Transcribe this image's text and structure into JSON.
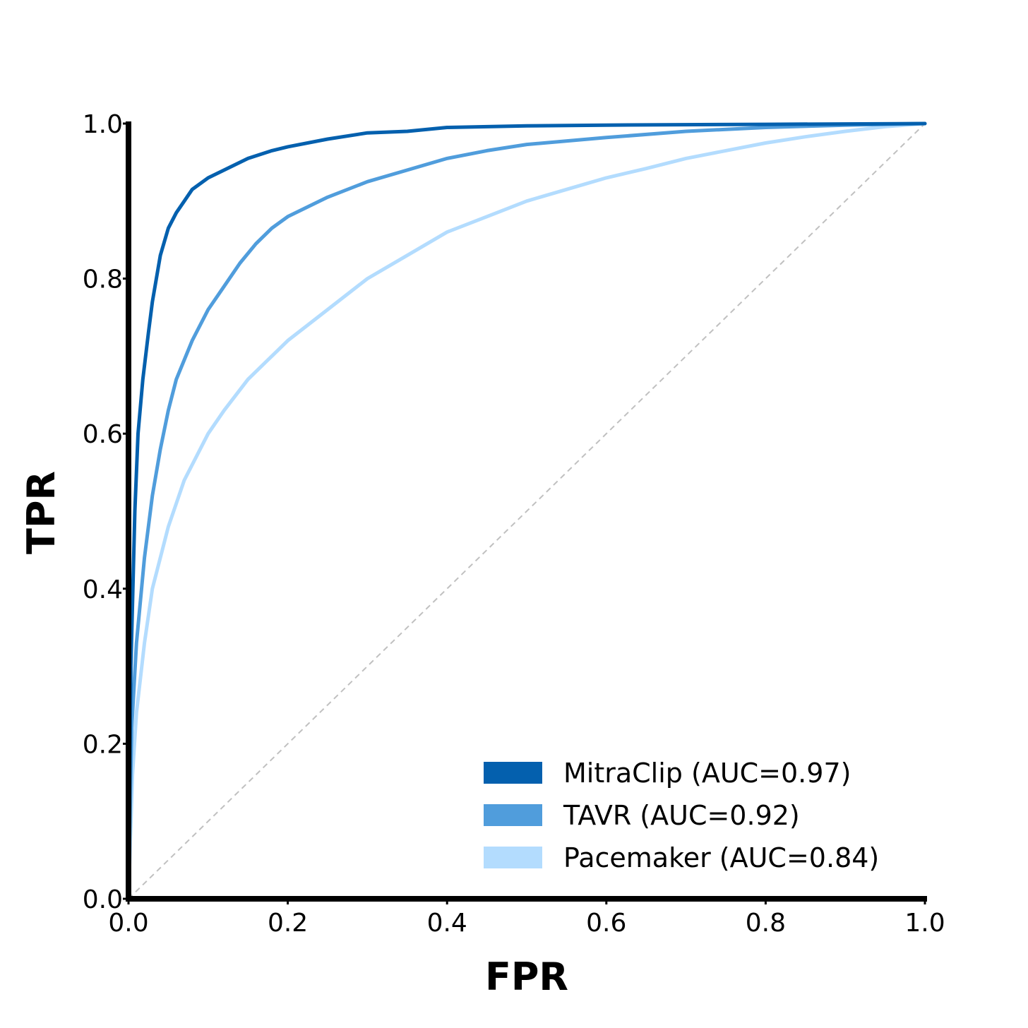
{
  "chart_data": {
    "type": "line",
    "title": "",
    "xlabel": "FPR",
    "ylabel": "TPR",
    "xlim": [
      0.0,
      1.0
    ],
    "ylim": [
      0.0,
      1.0
    ],
    "xticks": [
      "0.0",
      "0.2",
      "0.4",
      "0.6",
      "0.8",
      "1.0"
    ],
    "yticks": [
      "0.0",
      "0.2",
      "0.4",
      "0.6",
      "0.8",
      "1.0"
    ],
    "grid": false,
    "legend_position": "lower-right",
    "diagonal_reference": {
      "x": [
        0,
        1
      ],
      "y": [
        0,
        1
      ],
      "style": "dashed",
      "color": "#c0c0c0"
    },
    "series": [
      {
        "name": "MitraClip (AUC=0.97)",
        "color": "#0460ae",
        "x": [
          0.0,
          0.003,
          0.008,
          0.012,
          0.018,
          0.025,
          0.03,
          0.04,
          0.05,
          0.06,
          0.07,
          0.08,
          0.1,
          0.12,
          0.15,
          0.18,
          0.2,
          0.25,
          0.3,
          0.35,
          0.4,
          0.5,
          0.6,
          0.8,
          1.0
        ],
        "y": [
          0.0,
          0.3,
          0.5,
          0.6,
          0.67,
          0.73,
          0.77,
          0.83,
          0.865,
          0.885,
          0.9,
          0.915,
          0.93,
          0.94,
          0.955,
          0.965,
          0.97,
          0.98,
          0.988,
          0.99,
          0.995,
          0.997,
          0.998,
          0.999,
          1.0
        ]
      },
      {
        "name": "TAVR (AUC=0.92)",
        "color": "#509ddc",
        "x": [
          0.0,
          0.004,
          0.01,
          0.02,
          0.03,
          0.04,
          0.05,
          0.06,
          0.08,
          0.1,
          0.12,
          0.14,
          0.16,
          0.18,
          0.2,
          0.25,
          0.3,
          0.35,
          0.4,
          0.45,
          0.5,
          0.6,
          0.7,
          0.8,
          0.9,
          1.0
        ],
        "y": [
          0.0,
          0.22,
          0.33,
          0.44,
          0.52,
          0.58,
          0.63,
          0.67,
          0.72,
          0.76,
          0.79,
          0.82,
          0.845,
          0.865,
          0.88,
          0.905,
          0.925,
          0.94,
          0.955,
          0.965,
          0.973,
          0.982,
          0.99,
          0.995,
          0.998,
          1.0
        ]
      },
      {
        "name": "Pacemaker (AUC=0.84)",
        "color": "#b3dcfe",
        "x": [
          0.0,
          0.005,
          0.01,
          0.02,
          0.03,
          0.05,
          0.07,
          0.1,
          0.12,
          0.15,
          0.18,
          0.2,
          0.25,
          0.3,
          0.35,
          0.4,
          0.45,
          0.5,
          0.55,
          0.6,
          0.65,
          0.7,
          0.75,
          0.8,
          0.85,
          0.9,
          0.95,
          1.0
        ],
        "y": [
          0.0,
          0.16,
          0.24,
          0.33,
          0.4,
          0.48,
          0.54,
          0.6,
          0.63,
          0.67,
          0.7,
          0.72,
          0.76,
          0.8,
          0.83,
          0.86,
          0.88,
          0.9,
          0.915,
          0.93,
          0.942,
          0.955,
          0.965,
          0.975,
          0.983,
          0.99,
          0.996,
          1.0
        ]
      }
    ]
  }
}
